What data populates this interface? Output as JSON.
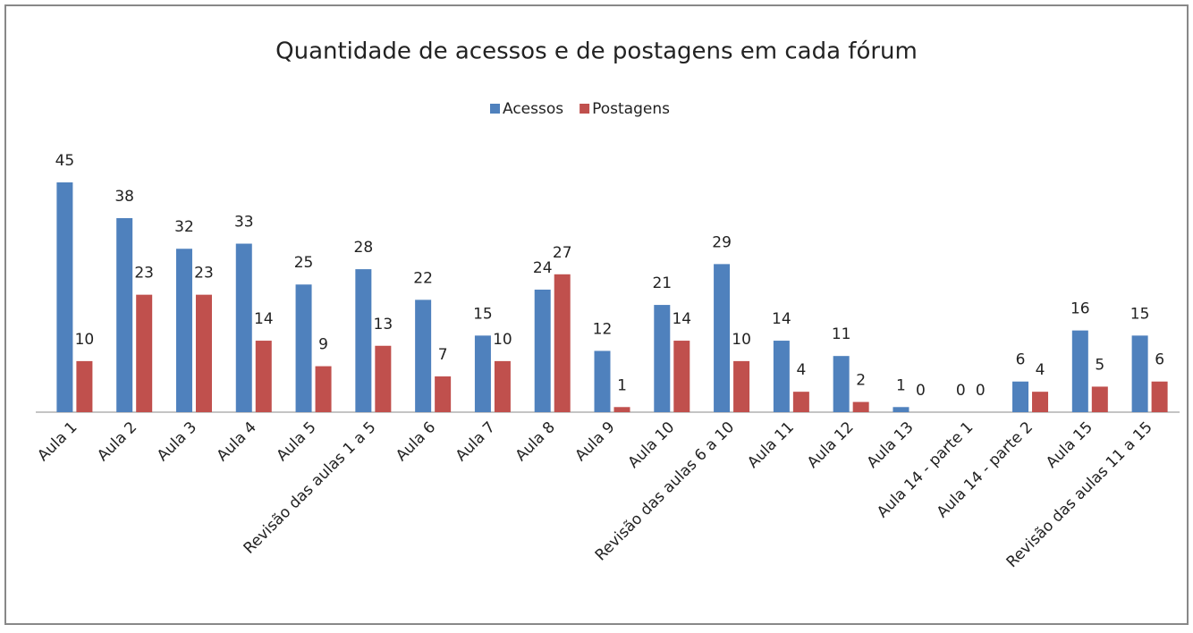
{
  "chart_data": {
    "type": "bar",
    "title": "Quantidade de acessos e de postagens em cada fórum",
    "categories": [
      "Aula 1",
      "Aula 2",
      "Aula 3",
      "Aula 4",
      "Aula 5",
      "Revisão das aulas 1 a 5",
      "Aula 6",
      "Aula 7",
      "Aula 8",
      "Aula 9",
      "Aula 10",
      "Revisão das aulas 6 a 10",
      "Aula 11",
      "Aula 12",
      "Aula 13",
      "Aula 14 - parte 1",
      "Aula 14 - parte 2",
      "Aula 15",
      "Revisão das aulas 11 a 15"
    ],
    "series": [
      {
        "name": "Acessos",
        "color": "#4f81bd",
        "values": [
          45,
          38,
          32,
          33,
          25,
          28,
          22,
          15,
          24,
          12,
          21,
          29,
          14,
          11,
          1,
          0,
          6,
          16,
          15
        ]
      },
      {
        "name": "Postagens",
        "color": "#c0504d",
        "values": [
          10,
          23,
          23,
          14,
          9,
          13,
          7,
          10,
          27,
          1,
          14,
          10,
          4,
          2,
          0,
          0,
          4,
          5,
          6
        ]
      }
    ],
    "legend": "top"
  }
}
